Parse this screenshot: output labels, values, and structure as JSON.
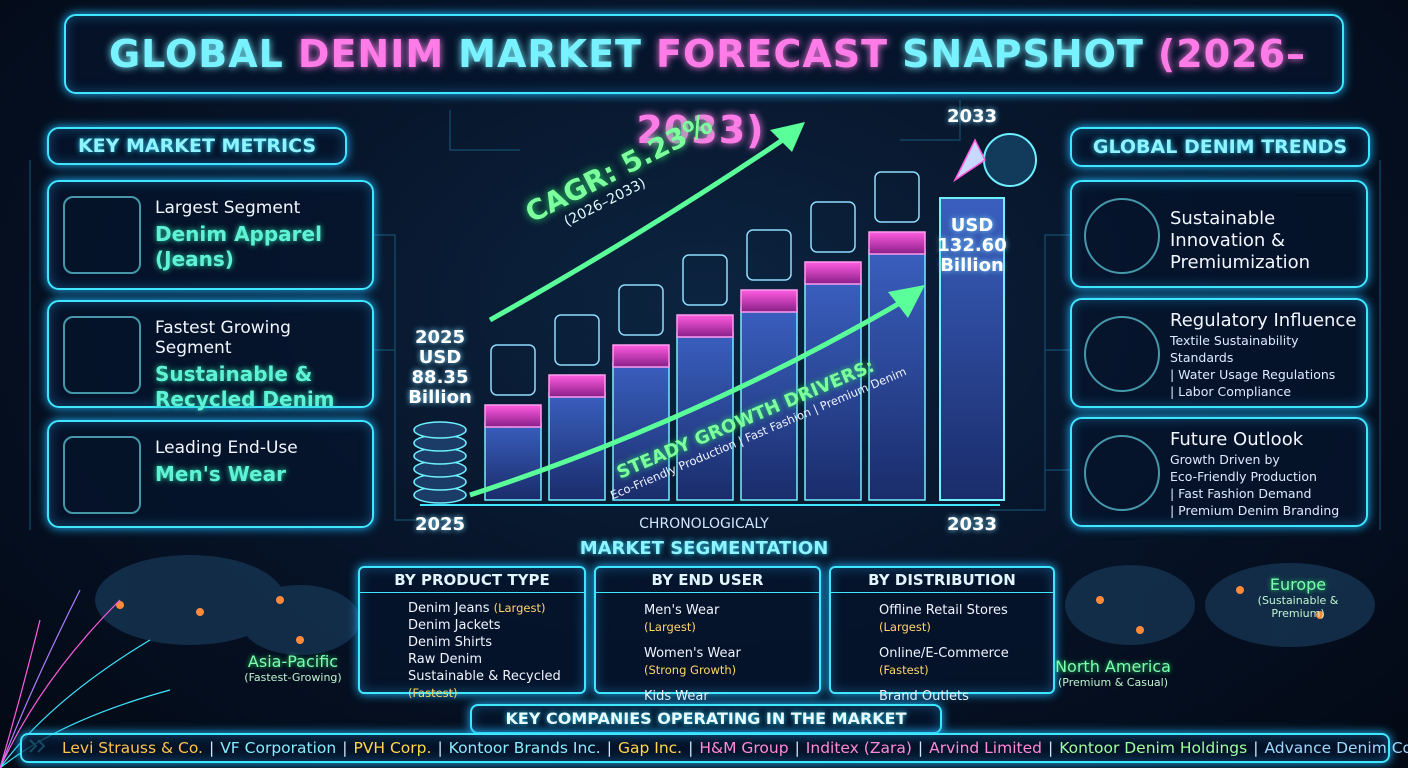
{
  "header": {
    "title_parts": [
      {
        "text": "GLOBAL",
        "color": "#79f2ff"
      },
      {
        "text": "DENIM",
        "color": "#ff7ce8"
      },
      {
        "text": "MARKET",
        "color": "#79f2ff"
      },
      {
        "text": "FORECAST",
        "color": "#ff7ce8"
      },
      {
        "text": "SNAPSHOT",
        "color": "#79f2ff"
      },
      {
        "text": "(2026–2033)",
        "color": "#ff7ce8"
      }
    ]
  },
  "key_metrics": {
    "heading": "KEY MARKET METRICS",
    "items": [
      {
        "label": "Largest Segment",
        "value": "Denim Apparel (Jeans)"
      },
      {
        "label": "Fastest Growing Segment",
        "value": "Sustainable & Recycled Denim"
      },
      {
        "label": "Leading End-Use",
        "value": "Men's Wear"
      }
    ]
  },
  "growth": {
    "cagr": "CAGR: 5.23%",
    "cagr_period": "(2026–2033)",
    "start": {
      "year": "2025",
      "currency": "USD",
      "amount": "88.35",
      "unit": "Billion",
      "axis_label": "2025"
    },
    "end": {
      "year": "2033",
      "currency": "USD",
      "amount": "132.60",
      "unit": "Billion",
      "axis_label": "2033"
    },
    "drivers_title": "STEADY GROWTH DRIVERS:",
    "drivers": "Eco-Friendly Production | Fast Fashion | Premium Denim",
    "caption": "CHRONOLOGICALY"
  },
  "trends": {
    "heading": "GLOBAL DENIM TRENDS",
    "items": [
      {
        "title": "Sustainable Innovation & Premiumization",
        "lines": []
      },
      {
        "title": "Regulatory Influence",
        "lines": [
          "Textile Sustainability Standards",
          "| Water Usage Regulations",
          "| Labor Compliance"
        ]
      },
      {
        "title": "Future Outlook",
        "lines": [
          "Growth Driven by",
          "Eco-Friendly Production",
          "| Fast Fashion Demand",
          "| Premium Denim Branding"
        ]
      }
    ]
  },
  "segmentation": {
    "heading": "MARKET SEGMENTATION",
    "columns": [
      {
        "title": "BY PRODUCT TYPE",
        "items": [
          {
            "name": "Denim Jeans",
            "note": "(Largest)"
          },
          {
            "name": "Denim Jackets"
          },
          {
            "name": "Denim Shirts"
          },
          {
            "name": "Raw Denim"
          },
          {
            "name": "Sustainable & Recycled",
            "note": "(Fastest)"
          }
        ]
      },
      {
        "title": "BY END USER",
        "items": [
          {
            "name": "Men's Wear",
            "note": "(Largest)"
          },
          {
            "name": "Women's Wear",
            "note": "(Strong Growth)"
          },
          {
            "name": "Kids Wear"
          }
        ]
      },
      {
        "title": "BY DISTRIBUTION",
        "items": [
          {
            "name": "Offline Retail Stores",
            "note": "(Largest)"
          },
          {
            "name": "Online/E-Commerce",
            "note": "(Fastest)"
          },
          {
            "name": "Brand Outlets"
          }
        ]
      }
    ]
  },
  "regions": [
    {
      "name": "Asia-Pacific",
      "note": "(Fastest-Growing)"
    },
    {
      "name": "Europe",
      "note": "(Sustainable & Premium)"
    },
    {
      "name": "North America",
      "note": "(Premium & Casual)"
    }
  ],
  "companies": {
    "heading": "KEY COMPANIES OPERATING IN THE MARKET",
    "separator": "|",
    "list": [
      {
        "name": "Levi Strauss & Co.",
        "color": "#ffc44d"
      },
      {
        "name": "VF Corporation",
        "color": "#86ecff"
      },
      {
        "name": "PVH Corp.",
        "color": "#ffd84d"
      },
      {
        "name": "Kontoor Brands Inc.",
        "color": "#86ecff"
      },
      {
        "name": "Gap Inc.",
        "color": "#ffd84d"
      },
      {
        "name": "H&M Group",
        "color": "#ff8ad8"
      },
      {
        "name": "Inditex (Zara)",
        "color": "#ff8ad8"
      },
      {
        "name": "Arvind Limited",
        "color": "#ff8ad8"
      },
      {
        "name": "Kontoor Denim Holdings",
        "color": "#9dff9f"
      },
      {
        "name": "Advance Denim Co. Ltd.",
        "color": "#9ad8ff"
      }
    ]
  }
}
